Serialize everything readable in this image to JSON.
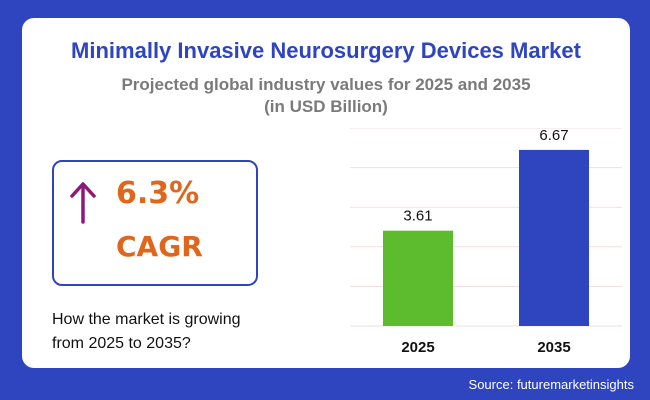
{
  "title": "Minimally Invasive Neurosurgery Devices Market",
  "subtitle_line1": "Projected global industry values for 2025 and 2035",
  "subtitle_line2": "(in USD Billion)",
  "cagr": {
    "value": "6.3%",
    "label": "CAGR",
    "icon": "arrow-up-icon",
    "color": "#e0661b",
    "arrow_color": "#8b1a7a"
  },
  "growth_text_line1": "How the market is growing",
  "growth_text_line2": "from 2025 to 2035?",
  "source": "Source: futuremarketinsights",
  "colors": {
    "background": "#2f45c0",
    "card": "#ffffff",
    "title": "#2f45c0",
    "subtitle": "#7a7a7a"
  },
  "chart_data": {
    "type": "bar",
    "categories": [
      "2025",
      "2035"
    ],
    "values": [
      3.61,
      6.67
    ],
    "data_labels": [
      "3.61",
      "6.67"
    ],
    "colors": [
      "#5cbc2e",
      "#2f45c0"
    ],
    "ylim": [
      0,
      7.5
    ],
    "grid": true,
    "title": "",
    "xlabel": "",
    "ylabel": ""
  }
}
